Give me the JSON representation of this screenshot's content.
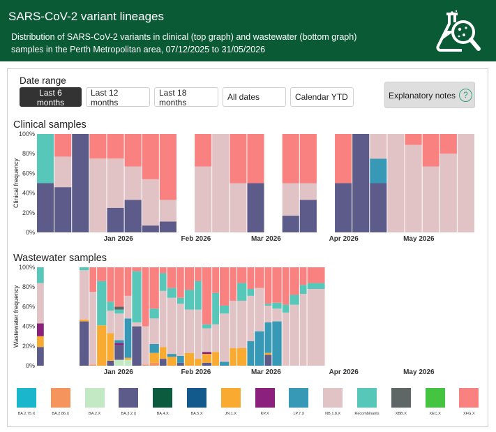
{
  "header": {
    "title": "SARS-CoV-2 variant lineages",
    "subtitle": "Distribution of SARS-CoV-2 variants in clinical (top graph) and wastewater (bottom graph) samples in the Perth Metropolitan area, 07/12/2025 to 31/05/2026",
    "logo_icon": "flask-magnifier-icon"
  },
  "controls": {
    "date_range_label": "Date range",
    "buttons": [
      "Last 6 months",
      "Last 12 months",
      "Last 18 months",
      "All dates",
      "Calendar YTD"
    ],
    "active_button": "Last 6 months",
    "notes_label": "Explanatory notes",
    "notes_icon": "question-circle-icon"
  },
  "sections": {
    "clinical_title": "Clinical samples",
    "wastewater_title": "Wastewater samples"
  },
  "legend": [
    {
      "label": "BA.2.75.X",
      "color": "#19b6cc"
    },
    {
      "label": "BA.2.86.X",
      "color": "#f5955d"
    },
    {
      "label": "BA.2.X",
      "color": "#c2e8c4"
    },
    {
      "label": "BA.3.2.X",
      "color": "#5d5b89"
    },
    {
      "label": "BA.4.X",
      "color": "#0b5c3f"
    },
    {
      "label": "BA.5.X",
      "color": "#125a8c"
    },
    {
      "label": "JN.1.X",
      "color": "#f9aa30"
    },
    {
      "label": "KP.X",
      "color": "#8c217d"
    },
    {
      "label": "LP.7.X",
      "color": "#3899b7"
    },
    {
      "label": "NB.1.8.X",
      "color": "#e1c3c6"
    },
    {
      "label": "Recombinants",
      "color": "#56c7b9"
    },
    {
      "label": "XBB.X",
      "color": "#5f6766"
    },
    {
      "label": "XEC.X",
      "color": "#45c442"
    },
    {
      "label": "XFG.X",
      "color": "#f98281"
    }
  ],
  "chart_data": [
    {
      "type": "bar",
      "stacked": true,
      "title": "Clinical samples",
      "ylabel": "Clinical frequency",
      "ylim": [
        0,
        100
      ],
      "yticks": [
        "0%",
        "20%",
        "40%",
        "60%",
        "80%",
        "100%"
      ],
      "x_month_labels": [
        "Jan 2026",
        "Feb 2026",
        "Mar 2026",
        "Apr 2026",
        "May 2026"
      ],
      "x_start": "2025-12-07",
      "x_end": "2026-05-31",
      "bars": [
        {
          "week": "2025-12-07",
          "BA.3.2.X": 50,
          "Recombinants": 50
        },
        {
          "week": "2025-12-14",
          "BA.3.2.X": 46,
          "NB.1.8.X": 31,
          "XFG.X": 23
        },
        {
          "week": "2025-12-21",
          "BA.3.2.X": 100
        },
        {
          "week": "2025-12-28",
          "NB.1.8.X": 75,
          "XFG.X": 25
        },
        {
          "week": "2026-01-04",
          "BA.3.2.X": 25,
          "NB.1.8.X": 50,
          "XFG.X": 25
        },
        {
          "week": "2026-01-11",
          "BA.3.2.X": 33,
          "NB.1.8.X": 34,
          "XFG.X": 33
        },
        {
          "week": "2026-01-18",
          "BA.3.2.X": 7,
          "NB.1.8.X": 47,
          "XFG.X": 46
        },
        {
          "week": "2026-01-25",
          "BA.3.2.X": 11,
          "NB.1.8.X": 22,
          "XFG.X": 67
        },
        {
          "week": "2026-02-01"
        },
        {
          "week": "2026-02-08",
          "NB.1.8.X": 67,
          "XFG.X": 33
        },
        {
          "week": "2026-02-15",
          "NB.1.8.X": 100
        },
        {
          "week": "2026-02-22",
          "NB.1.8.X": 50,
          "XFG.X": 50
        },
        {
          "week": "2026-03-01",
          "BA.3.2.X": 50,
          "XFG.X": 50
        },
        {
          "week": "2026-03-08"
        },
        {
          "week": "2026-03-15",
          "BA.3.2.X": 17,
          "NB.1.8.X": 33,
          "XFG.X": 50
        },
        {
          "week": "2026-03-22",
          "BA.3.2.X": 33,
          "NB.1.8.X": 17,
          "XFG.X": 50
        },
        {
          "week": "2026-03-29"
        },
        {
          "week": "2026-04-05",
          "BA.3.2.X": 50,
          "XFG.X": 50
        },
        {
          "week": "2026-04-12",
          "BA.3.2.X": 100
        },
        {
          "week": "2026-04-19",
          "BA.3.2.X": 50,
          "LP.7.X": 25,
          "NB.1.8.X": 25
        },
        {
          "week": "2026-04-26",
          "NB.1.8.X": 100
        },
        {
          "week": "2026-05-03",
          "NB.1.8.X": 89,
          "XFG.X": 11
        },
        {
          "week": "2026-05-10",
          "NB.1.8.X": 67,
          "XFG.X": 33
        },
        {
          "week": "2026-05-17",
          "NB.1.8.X": 80,
          "XFG.X": 20
        },
        {
          "week": "2026-05-24",
          "NB.1.8.X": 100
        }
      ]
    },
    {
      "type": "bar",
      "stacked": true,
      "title": "Wastewater samples",
      "ylabel": "Wastewater frequency",
      "ylim": [
        0,
        100
      ],
      "yticks": [
        "0%",
        "20%",
        "40%",
        "60%",
        "80%",
        "100%"
      ],
      "x_month_labels": [
        "Jan 2026",
        "Feb 2026",
        "Mar 2026",
        "Apr 2026",
        "May 2026"
      ],
      "x_start": "2025-12-07",
      "x_end": "2026-05-31",
      "bars": [
        {
          "week": "2025-12-07",
          "BA.3.2.X": 19,
          "JN.1.X": 11,
          "KP.X": 13,
          "NB.1.8.X": 41,
          "Recombinants": 16
        },
        {
          "week": "2025-12-10"
        },
        {
          "week": "2025-12-14"
        },
        {
          "week": "2025-12-17"
        },
        {
          "week": "2025-12-21"
        },
        {
          "week": "2025-12-24",
          "BA.3.2.X": 45,
          "JN.1.X": 2,
          "NB.1.8.X": 50,
          "Recombinants": 3
        },
        {
          "week": "2025-12-28",
          "BA.2.86.X": 1,
          "NB.1.8.X": 74,
          "XFG.X": 25
        },
        {
          "week": "2025-12-31",
          "JN.1.X": 41,
          "Recombinants": 45,
          "XFG.X": 14
        },
        {
          "week": "2026-01-04",
          "BA.3.2.X": 5,
          "JN.1.X": 28,
          "NB.1.8.X": 23,
          "Recombinants": 9,
          "XFG.X": 35
        },
        {
          "week": "2026-01-07",
          "BA.2.X": 6,
          "BA.3.2.X": 15,
          "KP.X": 2,
          "LP.7.X": 3,
          "NB.1.8.X": 27,
          "Recombinants": 4,
          "XBB.X": 3,
          "XFG.X": 40
        },
        {
          "week": "2026-01-11",
          "JN.1.X": 2,
          "BA.2.X": 6,
          "LP.7.X": 40,
          "NB.1.8.X": 23,
          "XFG.X": 29
        },
        {
          "week": "2026-01-14",
          "BA.3.2.X": 40,
          "NB.1.8.X": 4,
          "Recombinants": 52,
          "XFG.X": 4
        },
        {
          "week": "2026-01-18",
          "BA.2.86.X": 1,
          "NB.1.8.X": 39,
          "XFG.X": 60
        },
        {
          "week": "2026-01-21",
          "BA.2.86.X": 3,
          "JN.1.X": 10,
          "LP.7.X": 9,
          "NB.1.8.X": 26,
          "Recombinants": 10,
          "XFG.X": 42
        },
        {
          "week": "2026-01-25",
          "BA.3.2.X": 7,
          "JN.1.X": 12,
          "NB.1.8.X": 57,
          "Recombinants": 18,
          "XFG.X": 6
        },
        {
          "week": "2026-01-28",
          "JN.1.X": 9,
          "LP.7.X": 3,
          "NB.1.8.X": 57,
          "Recombinants": 10,
          "XFG.X": 21
        },
        {
          "week": "2026-02-01",
          "BA.3.2.X": 3,
          "LP.7.X": 7,
          "NB.1.8.X": 53,
          "Recombinants": 6,
          "XFG.X": 31
        },
        {
          "week": "2026-02-04",
          "JN.1.X": 13,
          "NB.1.8.X": 44,
          "Recombinants": 20,
          "XFG.X": 23
        },
        {
          "week": "2026-02-08",
          "JN.1.X": 7,
          "NB.1.8.X": 50,
          "Recombinants": 29,
          "XFG.X": 14
        },
        {
          "week": "2026-02-11",
          "BA.3.2.X": 3,
          "JN.1.X": 9,
          "KP.X": 2,
          "NB.1.8.X": 24,
          "Recombinants": 4,
          "XFG.X": 58
        },
        {
          "week": "2026-02-15",
          "JN.1.X": 14,
          "NB.1.8.X": 28,
          "Recombinants": 32,
          "XFG.X": 26
        },
        {
          "week": "2026-02-18",
          "LP.7.X": 4,
          "NB.1.8.X": 49,
          "Recombinants": 8,
          "XFG.X": 39
        },
        {
          "week": "2026-02-22",
          "JN.1.X": 18,
          "NB.1.8.X": 48,
          "XFG.X": 34
        },
        {
          "week": "2026-02-25",
          "JN.1.X": 18,
          "NB.1.8.X": 48,
          "Recombinants": 18,
          "XFG.X": 16
        },
        {
          "week": "2026-03-01",
          "LP.7.X": 25,
          "NB.1.8.X": 46,
          "Recombinants": 7,
          "XFG.X": 22
        },
        {
          "week": "2026-03-04",
          "LP.7.X": 35,
          "NB.1.8.X": 44,
          "XFG.X": 21
        },
        {
          "week": "2026-03-08",
          "JN.1.X": 2,
          "BA.3.2.X": 11,
          "LP.7.X": 31,
          "NB.1.8.X": 17,
          "Recombinants": 2,
          "XFG.X": 37
        },
        {
          "week": "2026-03-11",
          "LP.7.X": 45,
          "NB.1.8.X": 13,
          "Recombinants": 6,
          "XFG.X": 36
        },
        {
          "week": "2026-03-15",
          "NB.1.8.X": 54,
          "Recombinants": 8,
          "XFG.X": 38
        },
        {
          "week": "2026-03-18",
          "NB.1.8.X": 62,
          "Recombinants": 10,
          "XFG.X": 28
        },
        {
          "week": "2026-03-22",
          "NB.1.8.X": 73,
          "Recombinants": 9,
          "XFG.X": 18
        },
        {
          "week": "2026-03-25",
          "NB.1.8.X": 78,
          "Recombinants": 6,
          "XFG.X": 16
        }
      ]
    }
  ]
}
